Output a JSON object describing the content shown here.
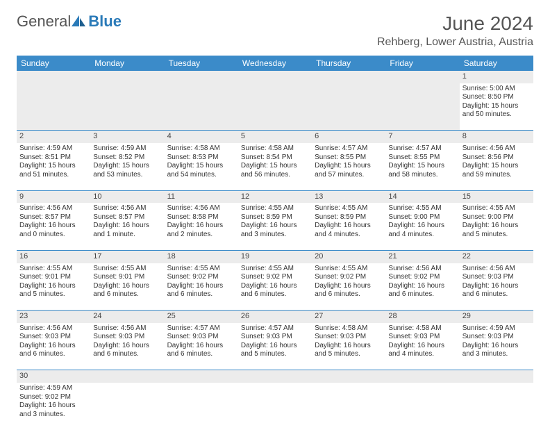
{
  "brand": {
    "part1": "General",
    "part2": "Blue"
  },
  "title": "June 2024",
  "location": "Rehberg, Lower Austria, Austria",
  "colors": {
    "header_bg": "#3b8bc9",
    "header_text": "#ffffff",
    "daynum_bg": "#ececec",
    "border": "#3b8bc9",
    "text": "#333333",
    "brand_gray": "#555555",
    "brand_blue": "#2a7ab8"
  },
  "day_headers": [
    "Sunday",
    "Monday",
    "Tuesday",
    "Wednesday",
    "Thursday",
    "Friday",
    "Saturday"
  ],
  "weeks": [
    {
      "nums": [
        "",
        "",
        "",
        "",
        "",
        "",
        "1"
      ],
      "cells": [
        null,
        null,
        null,
        null,
        null,
        null,
        {
          "sunrise": "5:00 AM",
          "sunset": "8:50 PM",
          "daylight": "15 hours and 50 minutes."
        }
      ]
    },
    {
      "nums": [
        "2",
        "3",
        "4",
        "5",
        "6",
        "7",
        "8"
      ],
      "cells": [
        {
          "sunrise": "4:59 AM",
          "sunset": "8:51 PM",
          "daylight": "15 hours and 51 minutes."
        },
        {
          "sunrise": "4:59 AM",
          "sunset": "8:52 PM",
          "daylight": "15 hours and 53 minutes."
        },
        {
          "sunrise": "4:58 AM",
          "sunset": "8:53 PM",
          "daylight": "15 hours and 54 minutes."
        },
        {
          "sunrise": "4:58 AM",
          "sunset": "8:54 PM",
          "daylight": "15 hours and 56 minutes."
        },
        {
          "sunrise": "4:57 AM",
          "sunset": "8:55 PM",
          "daylight": "15 hours and 57 minutes."
        },
        {
          "sunrise": "4:57 AM",
          "sunset": "8:55 PM",
          "daylight": "15 hours and 58 minutes."
        },
        {
          "sunrise": "4:56 AM",
          "sunset": "8:56 PM",
          "daylight": "15 hours and 59 minutes."
        }
      ]
    },
    {
      "nums": [
        "9",
        "10",
        "11",
        "12",
        "13",
        "14",
        "15"
      ],
      "cells": [
        {
          "sunrise": "4:56 AM",
          "sunset": "8:57 PM",
          "daylight": "16 hours and 0 minutes."
        },
        {
          "sunrise": "4:56 AM",
          "sunset": "8:57 PM",
          "daylight": "16 hours and 1 minute."
        },
        {
          "sunrise": "4:56 AM",
          "sunset": "8:58 PM",
          "daylight": "16 hours and 2 minutes."
        },
        {
          "sunrise": "4:55 AM",
          "sunset": "8:59 PM",
          "daylight": "16 hours and 3 minutes."
        },
        {
          "sunrise": "4:55 AM",
          "sunset": "8:59 PM",
          "daylight": "16 hours and 4 minutes."
        },
        {
          "sunrise": "4:55 AM",
          "sunset": "9:00 PM",
          "daylight": "16 hours and 4 minutes."
        },
        {
          "sunrise": "4:55 AM",
          "sunset": "9:00 PM",
          "daylight": "16 hours and 5 minutes."
        }
      ]
    },
    {
      "nums": [
        "16",
        "17",
        "18",
        "19",
        "20",
        "21",
        "22"
      ],
      "cells": [
        {
          "sunrise": "4:55 AM",
          "sunset": "9:01 PM",
          "daylight": "16 hours and 5 minutes."
        },
        {
          "sunrise": "4:55 AM",
          "sunset": "9:01 PM",
          "daylight": "16 hours and 6 minutes."
        },
        {
          "sunrise": "4:55 AM",
          "sunset": "9:02 PM",
          "daylight": "16 hours and 6 minutes."
        },
        {
          "sunrise": "4:55 AM",
          "sunset": "9:02 PM",
          "daylight": "16 hours and 6 minutes."
        },
        {
          "sunrise": "4:55 AM",
          "sunset": "9:02 PM",
          "daylight": "16 hours and 6 minutes."
        },
        {
          "sunrise": "4:56 AM",
          "sunset": "9:02 PM",
          "daylight": "16 hours and 6 minutes."
        },
        {
          "sunrise": "4:56 AM",
          "sunset": "9:03 PM",
          "daylight": "16 hours and 6 minutes."
        }
      ]
    },
    {
      "nums": [
        "23",
        "24",
        "25",
        "26",
        "27",
        "28",
        "29"
      ],
      "cells": [
        {
          "sunrise": "4:56 AM",
          "sunset": "9:03 PM",
          "daylight": "16 hours and 6 minutes."
        },
        {
          "sunrise": "4:56 AM",
          "sunset": "9:03 PM",
          "daylight": "16 hours and 6 minutes."
        },
        {
          "sunrise": "4:57 AM",
          "sunset": "9:03 PM",
          "daylight": "16 hours and 6 minutes."
        },
        {
          "sunrise": "4:57 AM",
          "sunset": "9:03 PM",
          "daylight": "16 hours and 5 minutes."
        },
        {
          "sunrise": "4:58 AM",
          "sunset": "9:03 PM",
          "daylight": "16 hours and 5 minutes."
        },
        {
          "sunrise": "4:58 AM",
          "sunset": "9:03 PM",
          "daylight": "16 hours and 4 minutes."
        },
        {
          "sunrise": "4:59 AM",
          "sunset": "9:03 PM",
          "daylight": "16 hours and 3 minutes."
        }
      ]
    },
    {
      "nums": [
        "30",
        "",
        "",
        "",
        "",
        "",
        ""
      ],
      "cells": [
        {
          "sunrise": "4:59 AM",
          "sunset": "9:02 PM",
          "daylight": "16 hours and 3 minutes."
        },
        null,
        null,
        null,
        null,
        null,
        null
      ]
    }
  ],
  "labels": {
    "sunrise": "Sunrise: ",
    "sunset": "Sunset: ",
    "daylight": "Daylight: "
  }
}
